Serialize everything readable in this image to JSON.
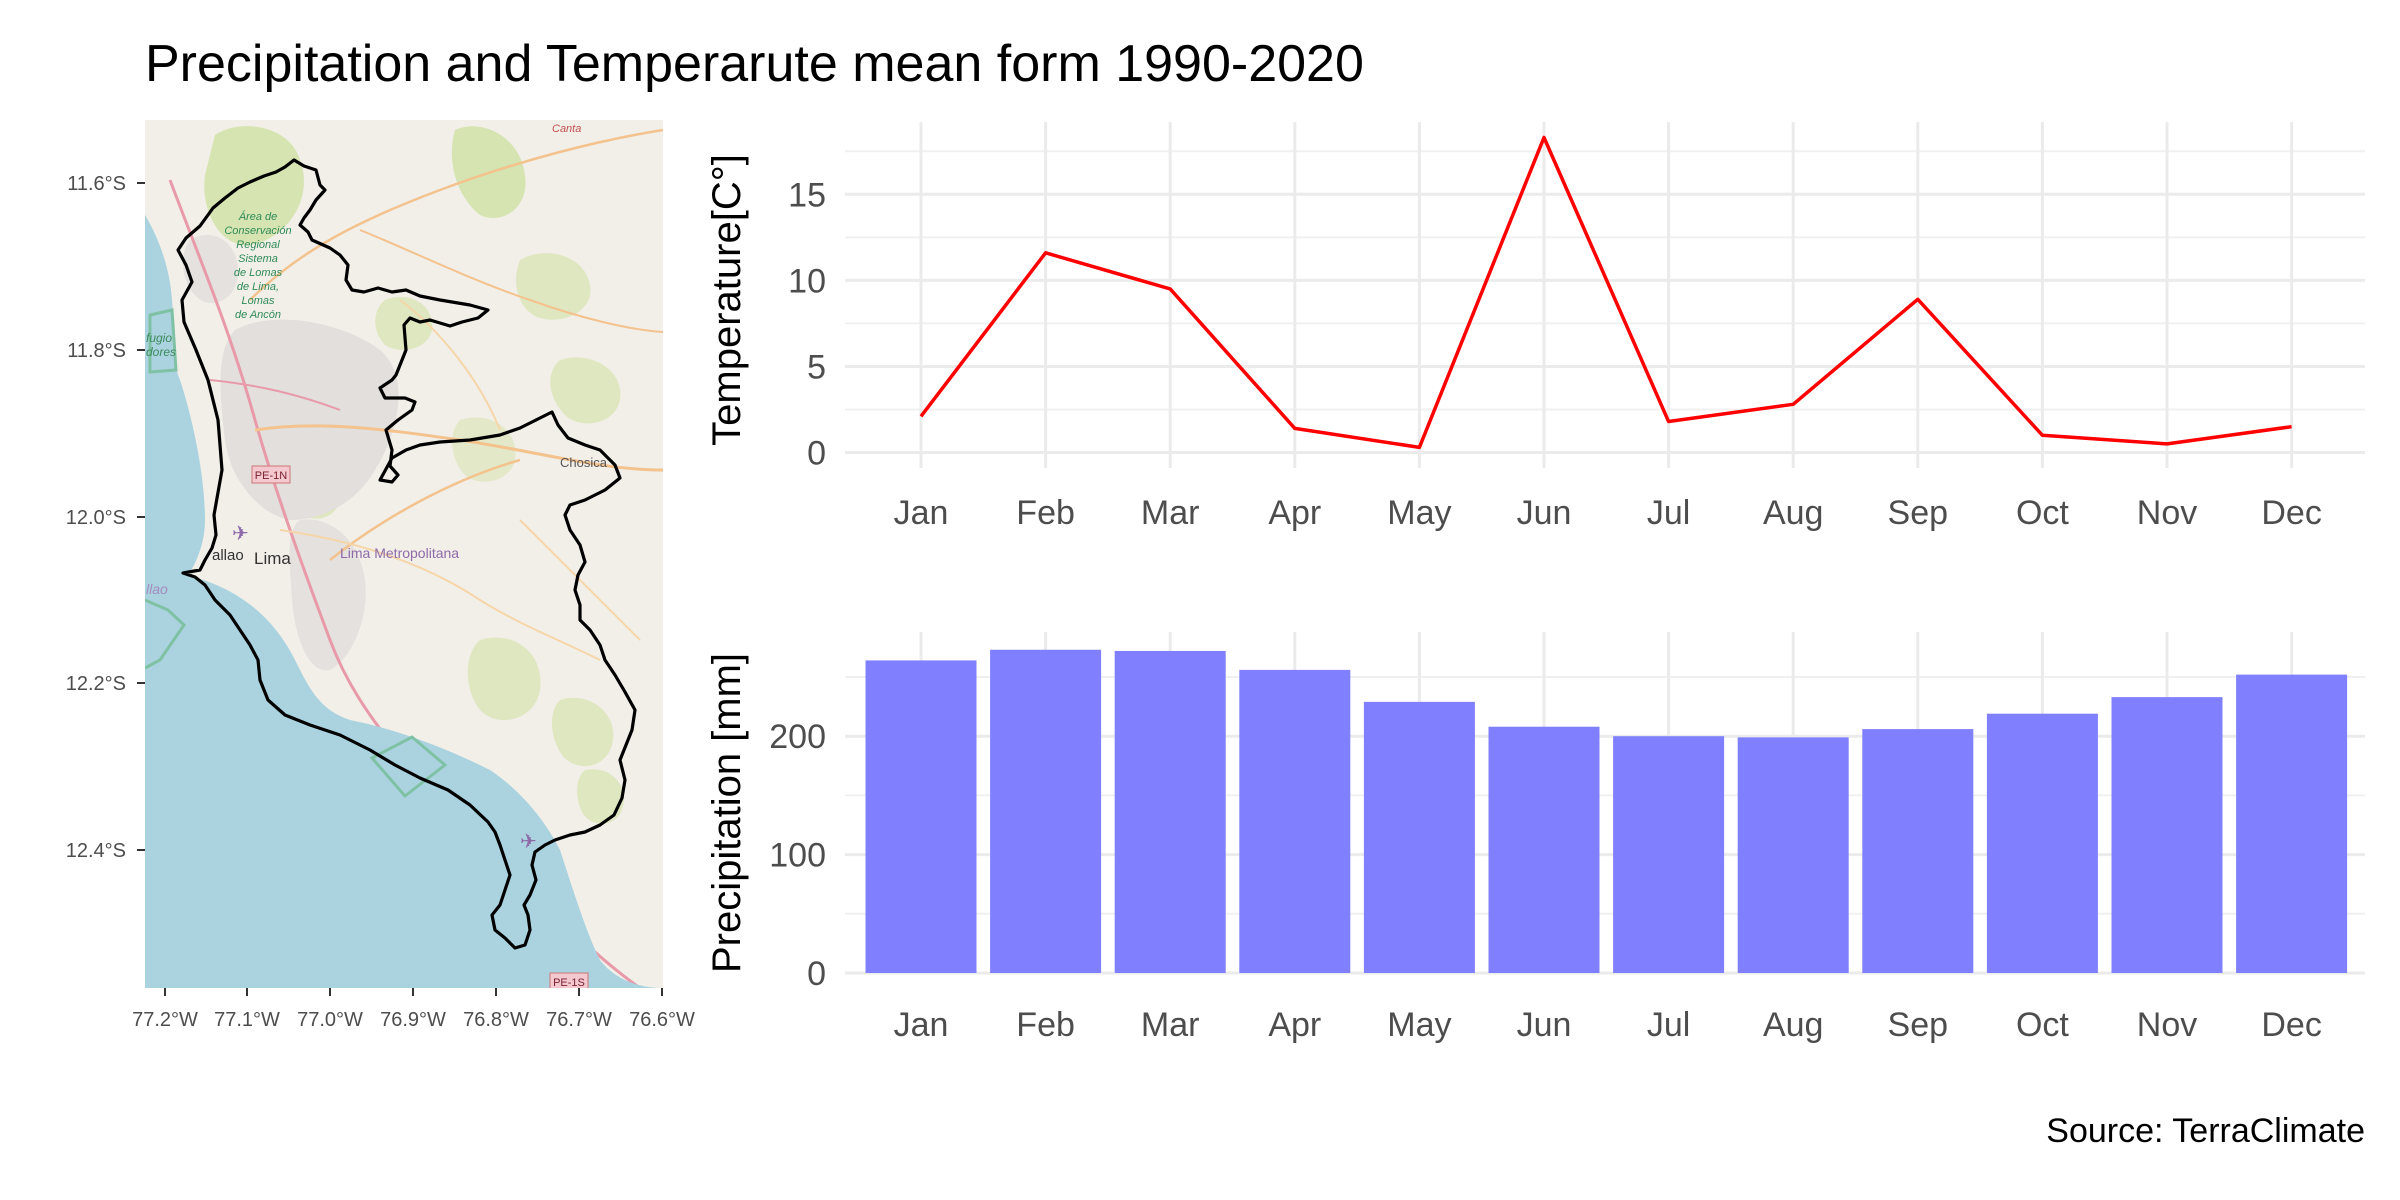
{
  "title": "Precipitation and Temperarute mean form 1990-2020",
  "caption": "Source: TerraClimate",
  "map": {
    "lat_labels": [
      "11.6°S",
      "11.8°S",
      "12.0°S",
      "12.2°S",
      "12.4°S"
    ],
    "lon_labels": [
      "77.2°W",
      "77.1°W",
      "77.0°W",
      "76.9°W",
      "76.8°W",
      "76.7°W",
      "76.6°W"
    ],
    "place_labels": {
      "lima": "Lima",
      "lima_metro": "Lima Metropolitana",
      "callao": "allao",
      "chosica": "Chosica",
      "canta": "Canta",
      "pe1n": "PE-1N",
      "pe1s": "PE-1S",
      "reserve": [
        "Área de",
        "Conservación",
        "Regional",
        "Sistema",
        "de Lomas",
        "de Lima,",
        "Lomas",
        "de Ancón"
      ],
      "left_edge_1": "fugio",
      "left_edge_2": "dores",
      "left_edge_3": "llao"
    },
    "colors": {
      "sea": "#aad3df",
      "land": "#f2efe9",
      "boundary": "#000000"
    }
  },
  "chart_data": [
    {
      "type": "line",
      "categories": [
        "Jan",
        "Feb",
        "Mar",
        "Apr",
        "May",
        "Jun",
        "Jul",
        "Aug",
        "Sep",
        "Oct",
        "Nov",
        "Dec"
      ],
      "series": [
        {
          "values": [
            2.1,
            11.6,
            9.5,
            1.4,
            0.3,
            18.3,
            1.8,
            2.8,
            8.9,
            1.0,
            0.5,
            1.5
          ],
          "color": "#ff0000"
        }
      ],
      "ylabel": "Temperature[C°]",
      "yticks": [
        0,
        5,
        10,
        15
      ],
      "ylim": [
        -0.9,
        19.2
      ],
      "grid": true
    },
    {
      "type": "bar",
      "categories": [
        "Jan",
        "Feb",
        "Mar",
        "Apr",
        "May",
        "Jun",
        "Jul",
        "Aug",
        "Sep",
        "Oct",
        "Nov",
        "Dec"
      ],
      "series": [
        {
          "values": [
            264,
            273,
            272,
            256,
            229,
            208,
            200,
            199,
            206,
            219,
            233,
            252
          ],
          "color": "#8080ff"
        }
      ],
      "ylabel": "Precipitation [mm]",
      "yticks": [
        0,
        100,
        200
      ],
      "ylim": [
        0,
        288
      ],
      "grid": true
    }
  ]
}
